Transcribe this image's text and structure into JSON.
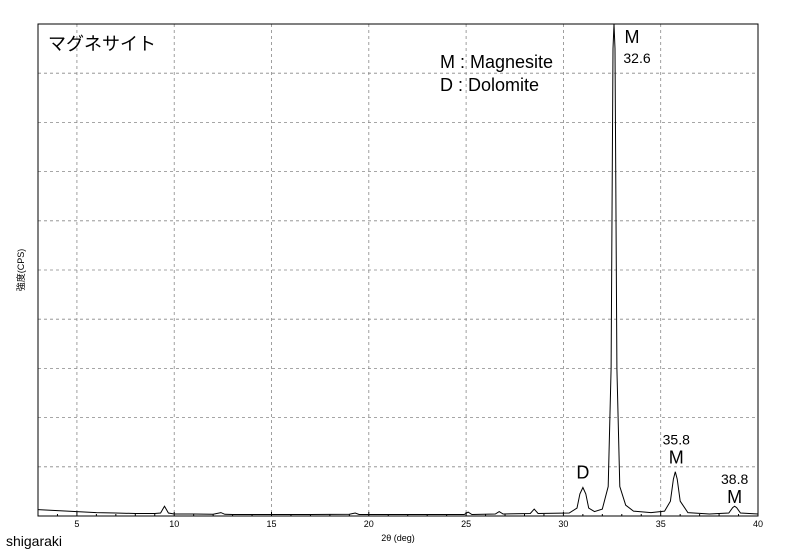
{
  "chart_data": {
    "type": "line",
    "title": "マグネサイト",
    "xlabel": "2θ (deg)",
    "ylabel": "強度(CPS)",
    "xlim": [
      3,
      40
    ],
    "ylim": [
      0,
      10
    ],
    "grid": true,
    "x_ticks": [
      5,
      10,
      15,
      20,
      25,
      30,
      35,
      40
    ],
    "legend": [
      "M : Magnesite",
      "D : Dolomite"
    ],
    "legend_placement": "top-center",
    "peak_labels": [
      {
        "x": 31.0,
        "y": 0.6,
        "letter": "D",
        "value": ""
      },
      {
        "x": 32.6,
        "y": 10.0,
        "letter": "M",
        "value": "32.6"
      },
      {
        "x": 35.8,
        "y": 0.9,
        "letter": "M",
        "value": "35.8"
      },
      {
        "x": 38.8,
        "y": 0.1,
        "letter": "M",
        "value": "38.8"
      }
    ],
    "series": [
      {
        "points": [
          [
            3.0,
            0.13
          ],
          [
            4.0,
            0.11
          ],
          [
            5.0,
            0.09
          ],
          [
            6.0,
            0.07
          ],
          [
            7.0,
            0.06
          ],
          [
            8.0,
            0.05
          ],
          [
            9.0,
            0.05
          ],
          [
            9.3,
            0.06
          ],
          [
            9.5,
            0.2
          ],
          [
            9.7,
            0.06
          ],
          [
            10.0,
            0.04
          ],
          [
            11.0,
            0.04
          ],
          [
            12.0,
            0.035
          ],
          [
            12.4,
            0.07
          ],
          [
            12.6,
            0.035
          ],
          [
            13.0,
            0.03
          ],
          [
            15.0,
            0.03
          ],
          [
            17.0,
            0.03
          ],
          [
            19.0,
            0.035
          ],
          [
            19.3,
            0.06
          ],
          [
            19.5,
            0.03
          ],
          [
            21.0,
            0.03
          ],
          [
            23.0,
            0.03
          ],
          [
            24.9,
            0.03
          ],
          [
            25.1,
            0.08
          ],
          [
            25.3,
            0.03
          ],
          [
            26.5,
            0.04
          ],
          [
            26.7,
            0.09
          ],
          [
            26.9,
            0.04
          ],
          [
            28.3,
            0.05
          ],
          [
            28.5,
            0.14
          ],
          [
            28.7,
            0.05
          ],
          [
            30.3,
            0.06
          ],
          [
            30.7,
            0.16
          ],
          [
            30.85,
            0.45
          ],
          [
            31.0,
            0.58
          ],
          [
            31.15,
            0.45
          ],
          [
            31.3,
            0.16
          ],
          [
            31.6,
            0.09
          ],
          [
            32.0,
            0.14
          ],
          [
            32.3,
            0.6
          ],
          [
            32.45,
            3.0
          ],
          [
            32.55,
            9.5
          ],
          [
            32.6,
            10.0
          ],
          [
            32.65,
            9.5
          ],
          [
            32.75,
            3.0
          ],
          [
            32.9,
            0.6
          ],
          [
            33.2,
            0.22
          ],
          [
            33.6,
            0.1
          ],
          [
            34.5,
            0.07
          ],
          [
            35.2,
            0.1
          ],
          [
            35.5,
            0.3
          ],
          [
            35.65,
            0.75
          ],
          [
            35.75,
            0.9
          ],
          [
            35.85,
            0.75
          ],
          [
            36.0,
            0.3
          ],
          [
            36.4,
            0.07
          ],
          [
            37.5,
            0.04
          ],
          [
            38.5,
            0.06
          ],
          [
            38.7,
            0.17
          ],
          [
            38.8,
            0.2
          ],
          [
            38.9,
            0.17
          ],
          [
            39.1,
            0.06
          ],
          [
            40.0,
            0.04
          ]
        ]
      }
    ]
  },
  "footer": "shigaraki"
}
